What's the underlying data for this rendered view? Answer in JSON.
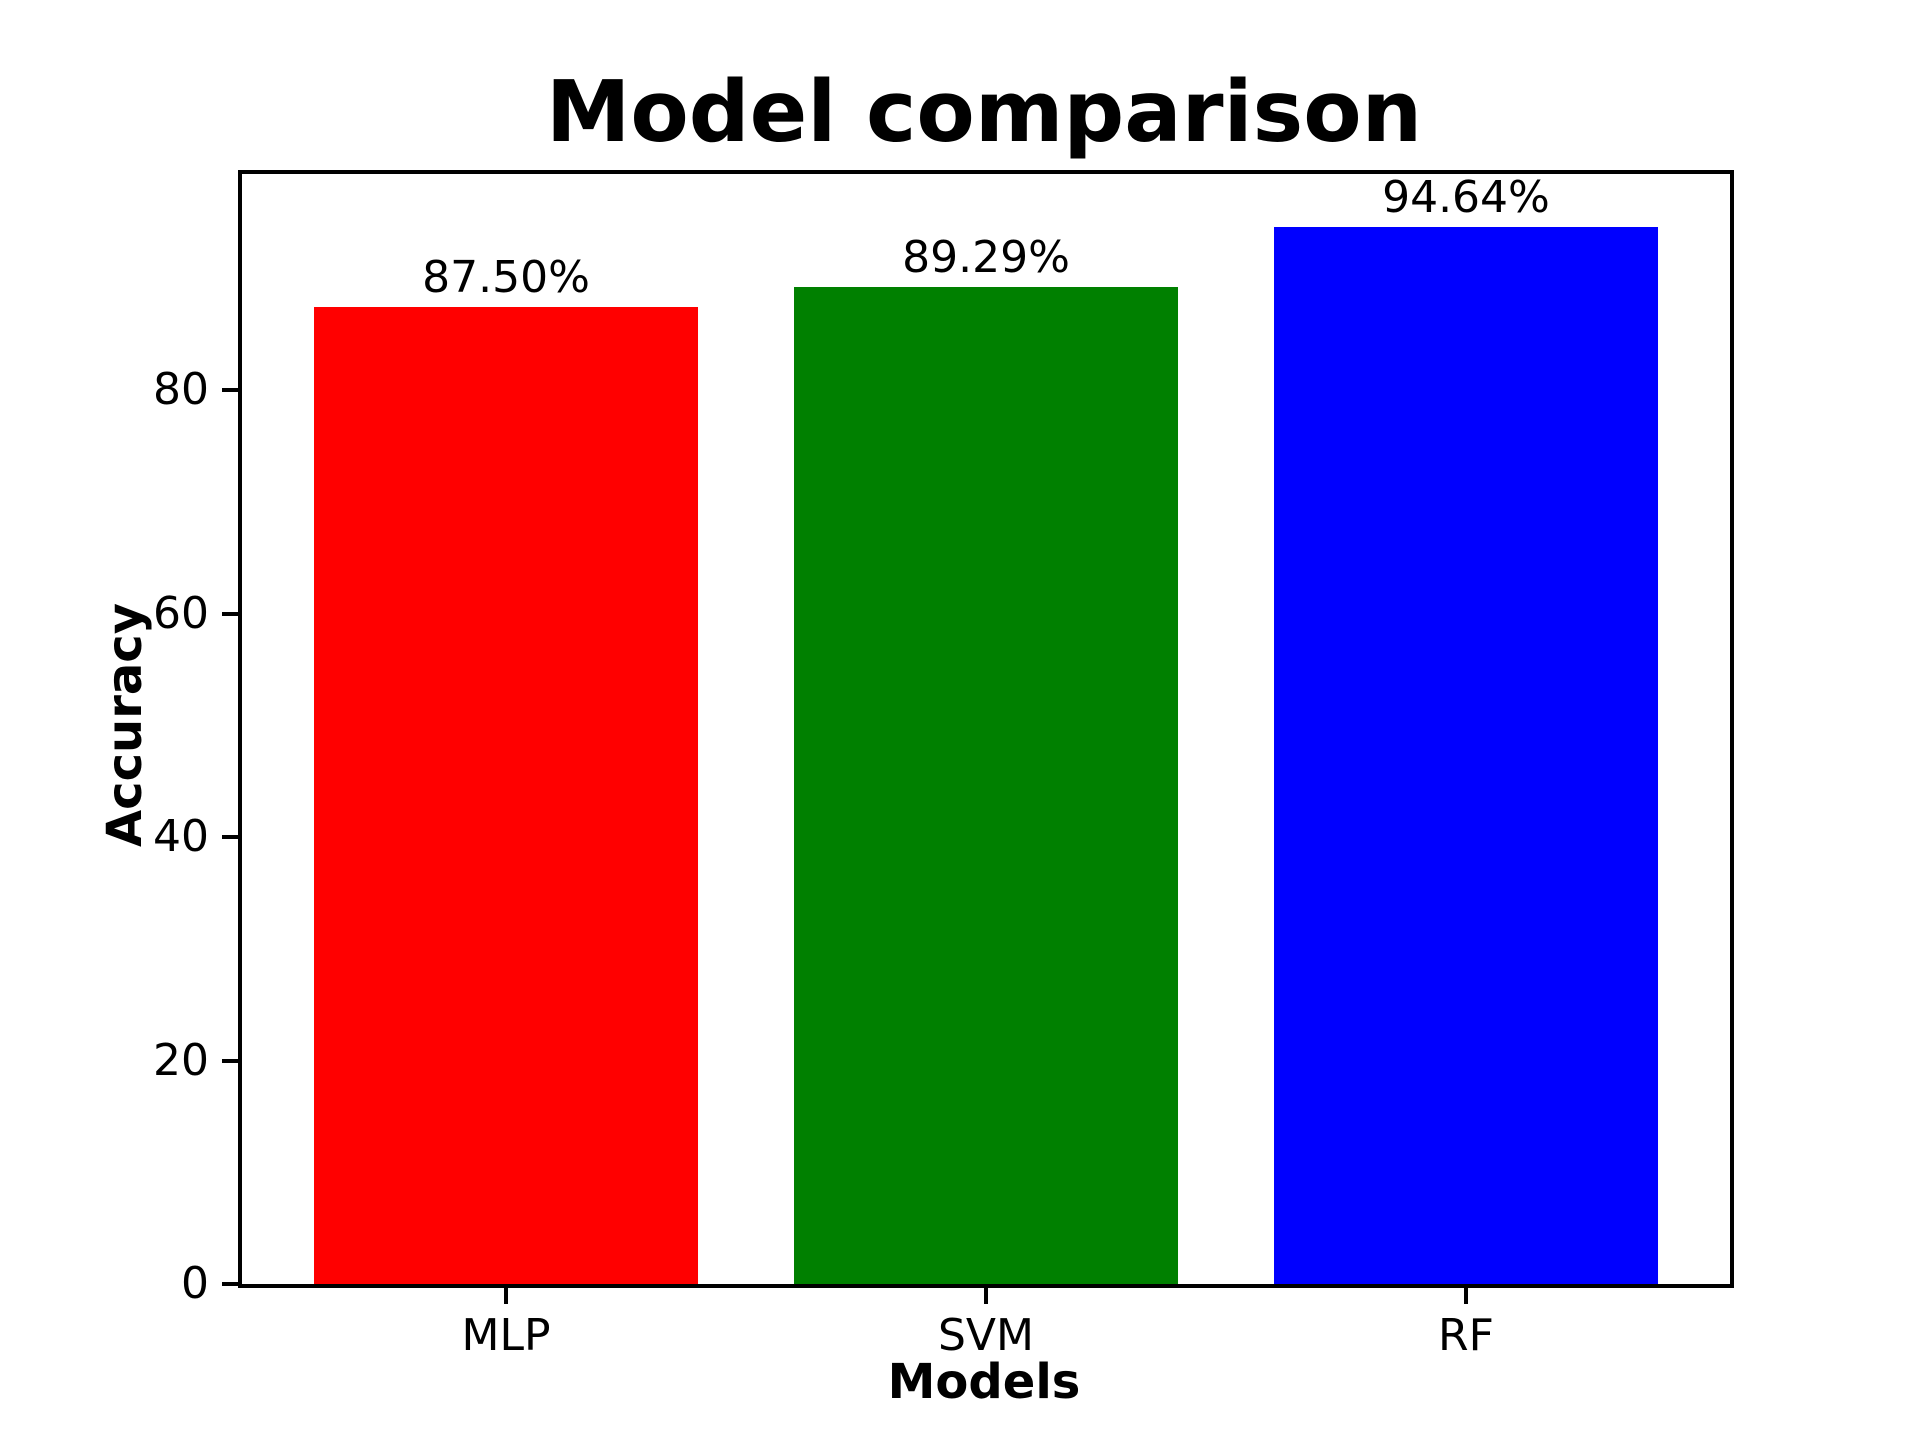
{
  "chart_data": {
    "type": "bar",
    "title": "Model comparison",
    "xlabel": "Models",
    "ylabel": "Accuracy",
    "categories": [
      "MLP",
      "SVM",
      "RF"
    ],
    "values": [
      87.5,
      89.29,
      94.64
    ],
    "value_labels": [
      "87.50%",
      "89.29%",
      "94.64%"
    ],
    "colors": [
      "#ff0000",
      "#008000",
      "#0000ff"
    ],
    "yticks": [
      0,
      20,
      40,
      60,
      80
    ],
    "ylim": [
      0,
      99.37
    ],
    "grid": false,
    "legend_position": "none",
    "background_color": "#ffffff",
    "spine_color": "#000000"
  }
}
